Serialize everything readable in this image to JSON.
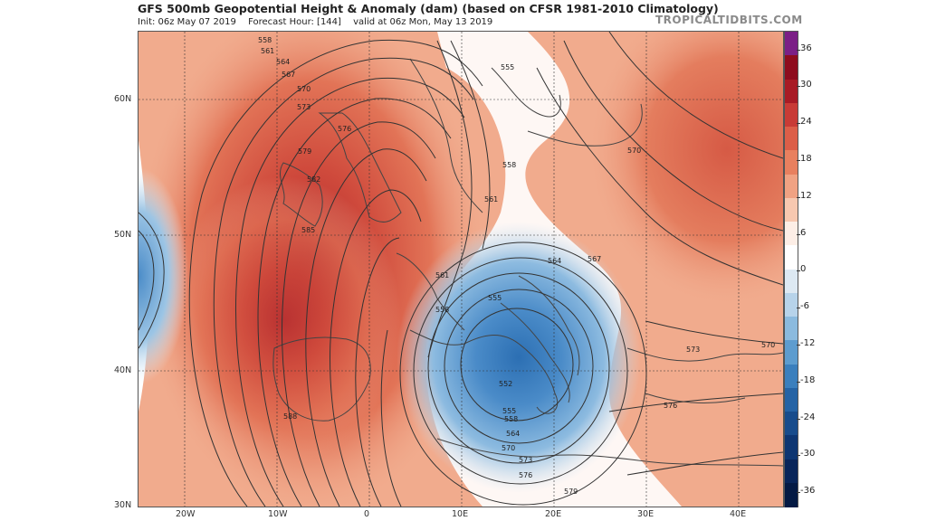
{
  "header": {
    "title": "GFS 500mb Geopotential Height & Anomaly (dam) (based on CFSR 1981-2010 Climatology)",
    "init": "Init: 06z May 07 2019",
    "forecast_hour": "Forecast Hour: [144]",
    "valid": "valid at 06z Mon, May 13 2019",
    "brand": "TROPICALTIDBITS.COM"
  },
  "axes": {
    "lat": [
      "60N",
      "50N",
      "40N",
      "30N"
    ],
    "lon": [
      "20W",
      "10W",
      "0",
      "10E",
      "20E",
      "30E",
      "40E"
    ]
  },
  "contours": {
    "labels": [
      "558",
      "561",
      "564",
      "567",
      "570",
      "573",
      "576",
      "579",
      "582",
      "585",
      "588",
      "555",
      "558",
      "561",
      "561",
      "564",
      "567",
      "555",
      "558",
      "552",
      "555",
      "558",
      "564",
      "570",
      "573",
      "576",
      "579",
      "570",
      "573",
      "570",
      "576"
    ]
  },
  "colorbar": {
    "labels": [
      "36",
      "30",
      "24",
      "18",
      "12",
      "6",
      "0",
      "-6",
      "-12",
      "-18",
      "-24",
      "-30",
      "-36"
    ],
    "colors": [
      "#7b1f86",
      "#8e0c1e",
      "#a81b25",
      "#c83b36",
      "#dc5e48",
      "#e8805f",
      "#f0a283",
      "#f7c8b0",
      "#fdeee6",
      "#ffffff",
      "#dde9f3",
      "#b7d3ea",
      "#8bbade",
      "#5d9ccf",
      "#3b7fbd",
      "#2563a5",
      "#184c8c",
      "#0e3672",
      "#08255a",
      "#041a44"
    ]
  },
  "colors": {
    "strong_positive": "#c83b36",
    "positive": "#ec9878",
    "negative": "#5d9ccf",
    "contour": "#333333",
    "land_border": "#555555"
  }
}
